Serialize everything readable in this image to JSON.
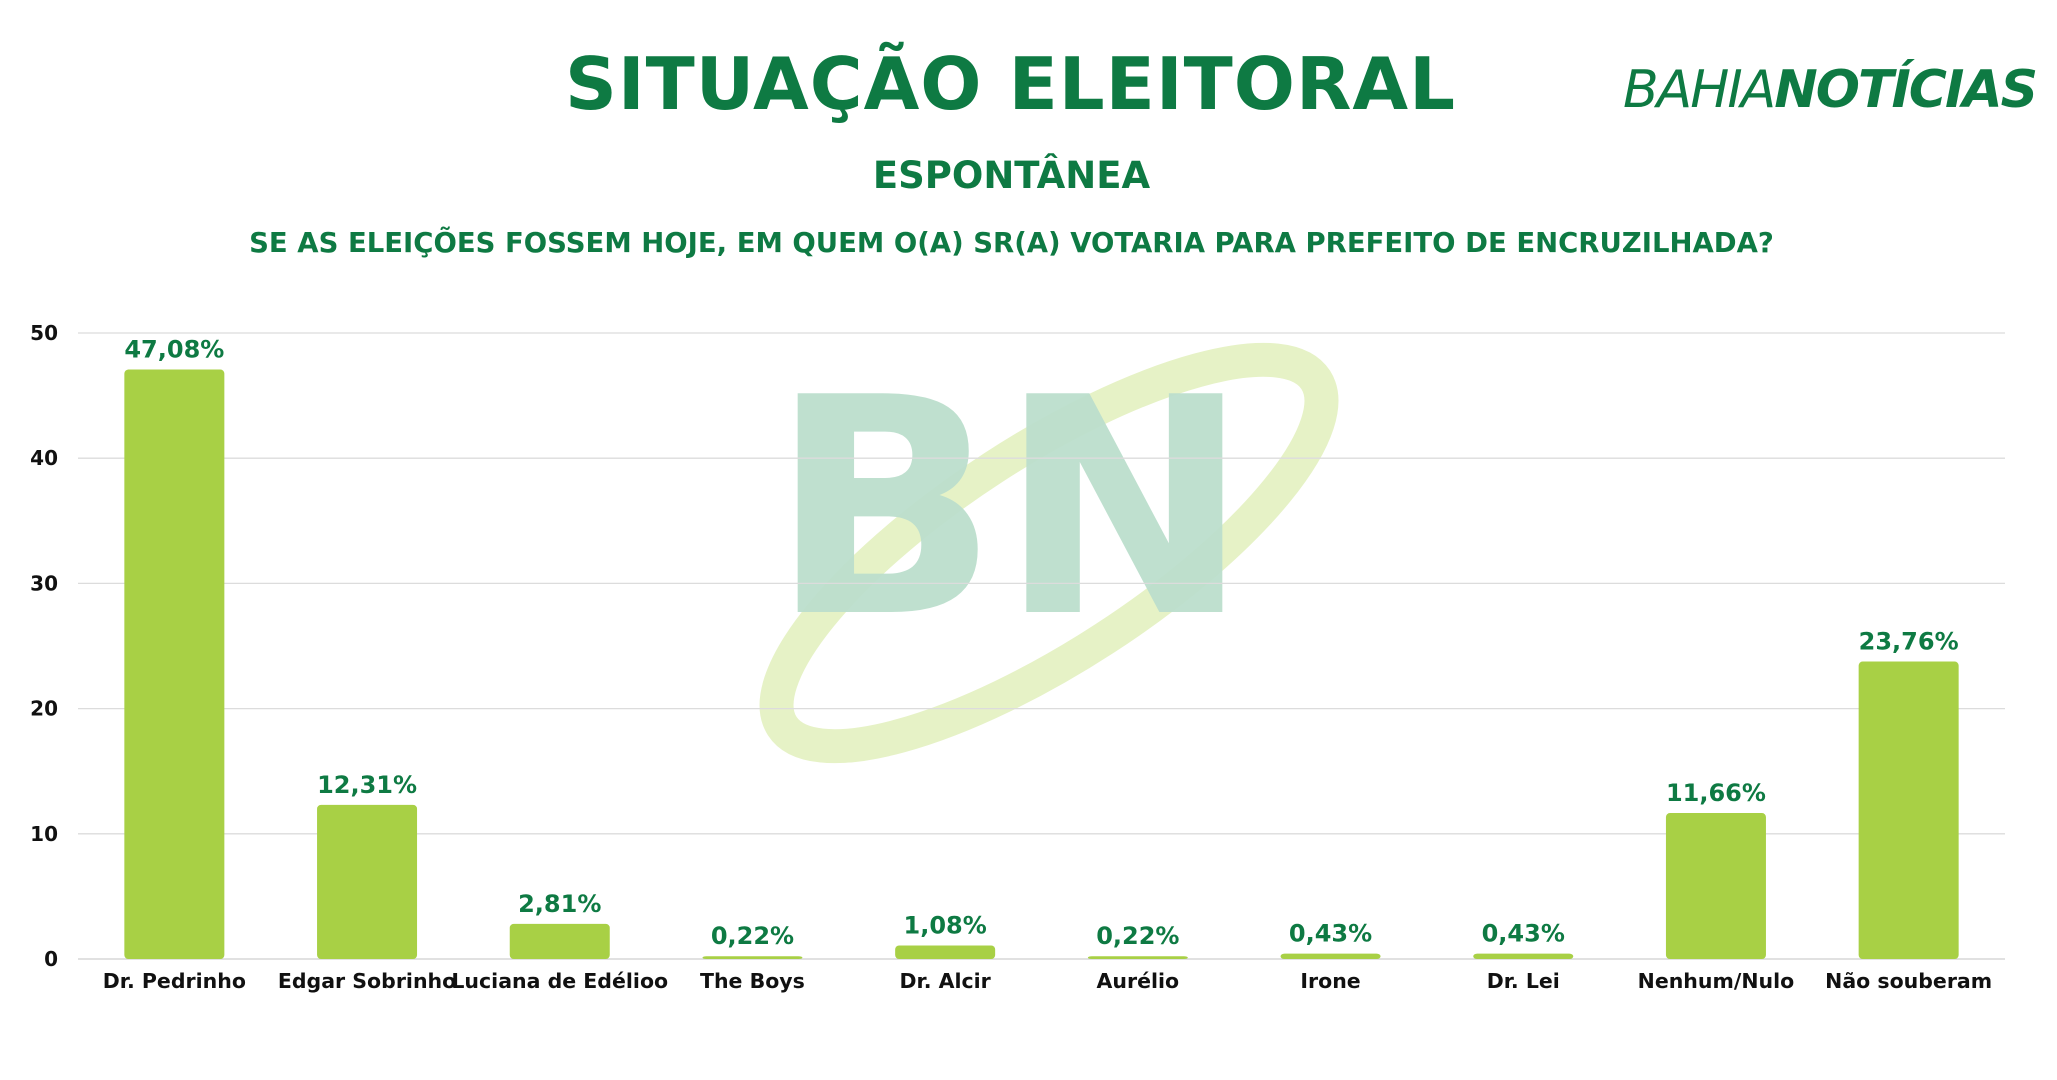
{
  "header": {
    "title": "SITUAÇÃO ELEITORAL",
    "subtitle": "ESPONTÂNEA",
    "question": "SE AS ELEIÇÕES FOSSEM HOJE, EM QUEM O(A) SR(A) VOTARIA PARA PREFEITO DE ENCRUZILHADA?"
  },
  "brand": {
    "part1": "BAHIA",
    "part2": "NOTÍCIAS",
    "watermark_text": "BN"
  },
  "colors": {
    "accent": "#0e7a43",
    "bar": "#a8d045",
    "grid": "#dcdcdc",
    "watermark_letters": "#bcdfcd",
    "watermark_swoosh": "#e6f2c6"
  },
  "chart_data": {
    "type": "bar",
    "categories": [
      "Dr. Pedrinho",
      "Edgar Sobrinho",
      "Luciana de Edélioo",
      "The Boys",
      "Dr. Alcir",
      "Aurélio",
      "Irone",
      "Dr. Lei",
      "Nenhum/Nulo",
      "Não souberam"
    ],
    "values": [
      47.08,
      12.31,
      2.81,
      0.22,
      1.08,
      0.22,
      0.43,
      0.43,
      11.66,
      23.76
    ],
    "data_labels": [
      "47,08%",
      "12,31%",
      "2,81%",
      "0,22%",
      "1,08%",
      "0,22%",
      "0,43%",
      "0,43%",
      "11,66%",
      "23,76%"
    ],
    "yticks": [
      0,
      10,
      20,
      30,
      40,
      50
    ],
    "ylim": [
      0,
      50
    ],
    "grid": true,
    "xlabel": "",
    "ylabel": ""
  }
}
